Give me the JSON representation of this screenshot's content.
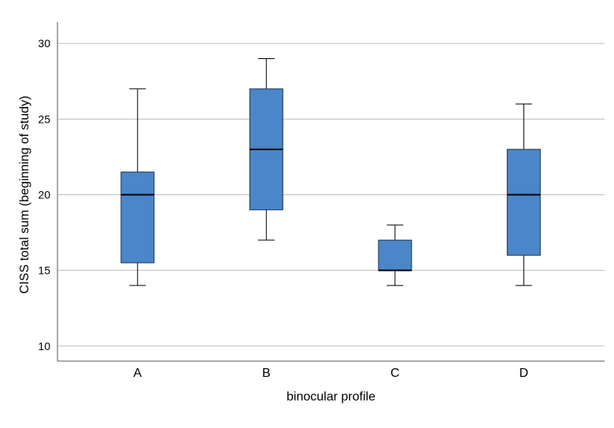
{
  "chart_data": {
    "type": "boxplot",
    "title": "",
    "xlabel": "binocular profile",
    "ylabel": "CISS total sum (beginning of study)",
    "ylim": [
      9,
      31
    ],
    "yticks": [
      10,
      15,
      20,
      25,
      30
    ],
    "grid": true,
    "categories": [
      "A",
      "B",
      "C",
      "D"
    ],
    "boxes": [
      {
        "category": "A",
        "min": 14,
        "q1": 15.5,
        "median": 20,
        "q3": 21.5,
        "max": 27
      },
      {
        "category": "B",
        "min": 17,
        "q1": 19,
        "median": 23,
        "q3": 27,
        "max": 29
      },
      {
        "category": "C",
        "min": 14,
        "q1": 15,
        "median": 15,
        "q3": 17,
        "max": 18
      },
      {
        "category": "D",
        "min": 14,
        "q1": 16,
        "median": 20,
        "q3": 23,
        "max": 26
      }
    ],
    "colors": {
      "box_fill": "#4a86c8",
      "box_stroke": "#1f3552",
      "median": "#000000",
      "grid": "#bdbdbd",
      "axis": "#555555"
    }
  }
}
